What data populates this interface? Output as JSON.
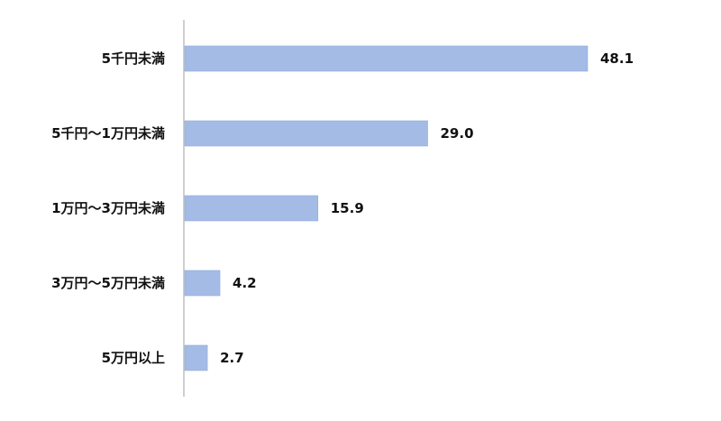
{
  "chart_data": {
    "type": "bar",
    "orientation": "horizontal",
    "categories": [
      "5千円未満",
      "5千円～1万円未満",
      "1万円～3万円未満",
      "3万円～5万円未満",
      "5万円以上"
    ],
    "values": [
      48.1,
      29.0,
      15.9,
      4.2,
      2.7
    ],
    "value_labels": [
      "48.1",
      "29.0",
      "15.9",
      "4.2",
      "2.7"
    ],
    "title": "",
    "xlabel": "",
    "ylabel": "",
    "xlim": [
      0,
      60
    ],
    "grid": false,
    "legend": "none",
    "bar_color": "#A4BBE6",
    "bar_edge_color": "#8FA9DC",
    "axis_color": "#BFBFBF"
  }
}
